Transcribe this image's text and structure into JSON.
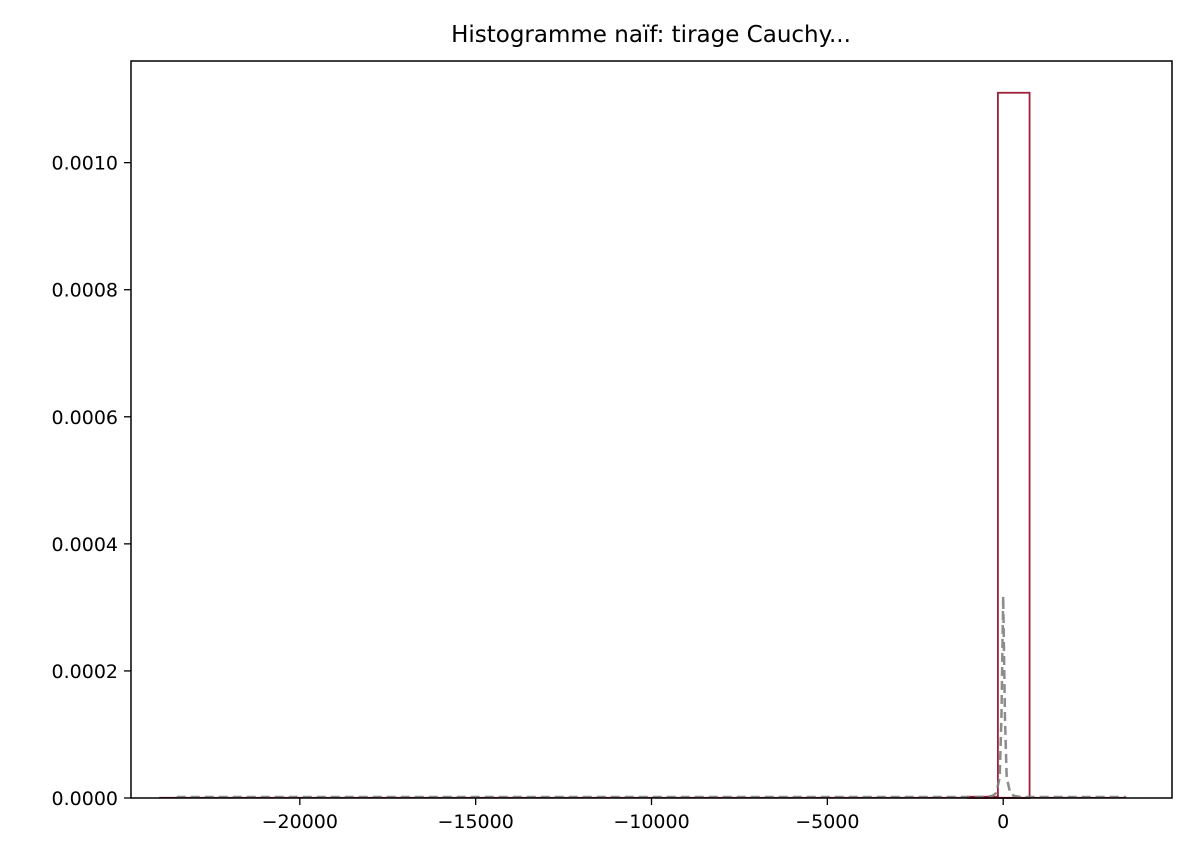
{
  "chart_data": {
    "type": "bar",
    "title": "Histogramme naïf: tirage Cauchy...",
    "xlabel": "",
    "ylabel": "",
    "xlim": [
      -24800,
      4800
    ],
    "ylim": [
      0,
      0.00116
    ],
    "x_ticks": [
      {
        "value": -20000,
        "label": "−20000"
      },
      {
        "value": -15000,
        "label": "−15000"
      },
      {
        "value": -10000,
        "label": "−10000"
      },
      {
        "value": -5000,
        "label": "−5000"
      },
      {
        "value": 0,
        "label": "0"
      }
    ],
    "y_ticks": [
      {
        "value": 0,
        "label": "0.0000"
      },
      {
        "value": 0.0002,
        "label": "0.0002"
      },
      {
        "value": 0.0004,
        "label": "0.0004"
      },
      {
        "value": 0.0006,
        "label": "0.0006"
      },
      {
        "value": 0.0008,
        "label": "0.0008"
      },
      {
        "value": 0.001,
        "label": "0.0010"
      }
    ],
    "grid": false,
    "legend": "none",
    "histogram": {
      "color": "#a0203a",
      "style": "step-outline",
      "bins": [
        {
          "x0": -24000,
          "x1": -23000,
          "density": 0
        },
        {
          "x0": -23000,
          "x1": -1000,
          "density": 0
        },
        {
          "x0": -1000,
          "x1": -150,
          "density": 2e-06
        },
        {
          "x0": -150,
          "x1": 750,
          "density": 0.00111
        },
        {
          "x0": 750,
          "x1": 3500,
          "density": 0
        }
      ]
    },
    "reference_curve": {
      "color": "#808080",
      "style": "dashed",
      "points": [
        [
          -23500,
          0
        ],
        [
          -5000,
          0
        ],
        [
          -1000,
          3e-07
        ],
        [
          -500,
          1.3e-06
        ],
        [
          -300,
          3.5e-06
        ],
        [
          -200,
          7.9e-06
        ],
        [
          -100,
          3.18e-05
        ],
        [
          -50,
          0.000127
        ],
        [
          0,
          0.000318
        ],
        [
          50,
          0.000127
        ],
        [
          100,
          3.18e-05
        ],
        [
          200,
          7.9e-06
        ],
        [
          300,
          3.5e-06
        ],
        [
          500,
          1.3e-06
        ],
        [
          1000,
          3e-07
        ],
        [
          3500,
          0
        ]
      ]
    }
  }
}
